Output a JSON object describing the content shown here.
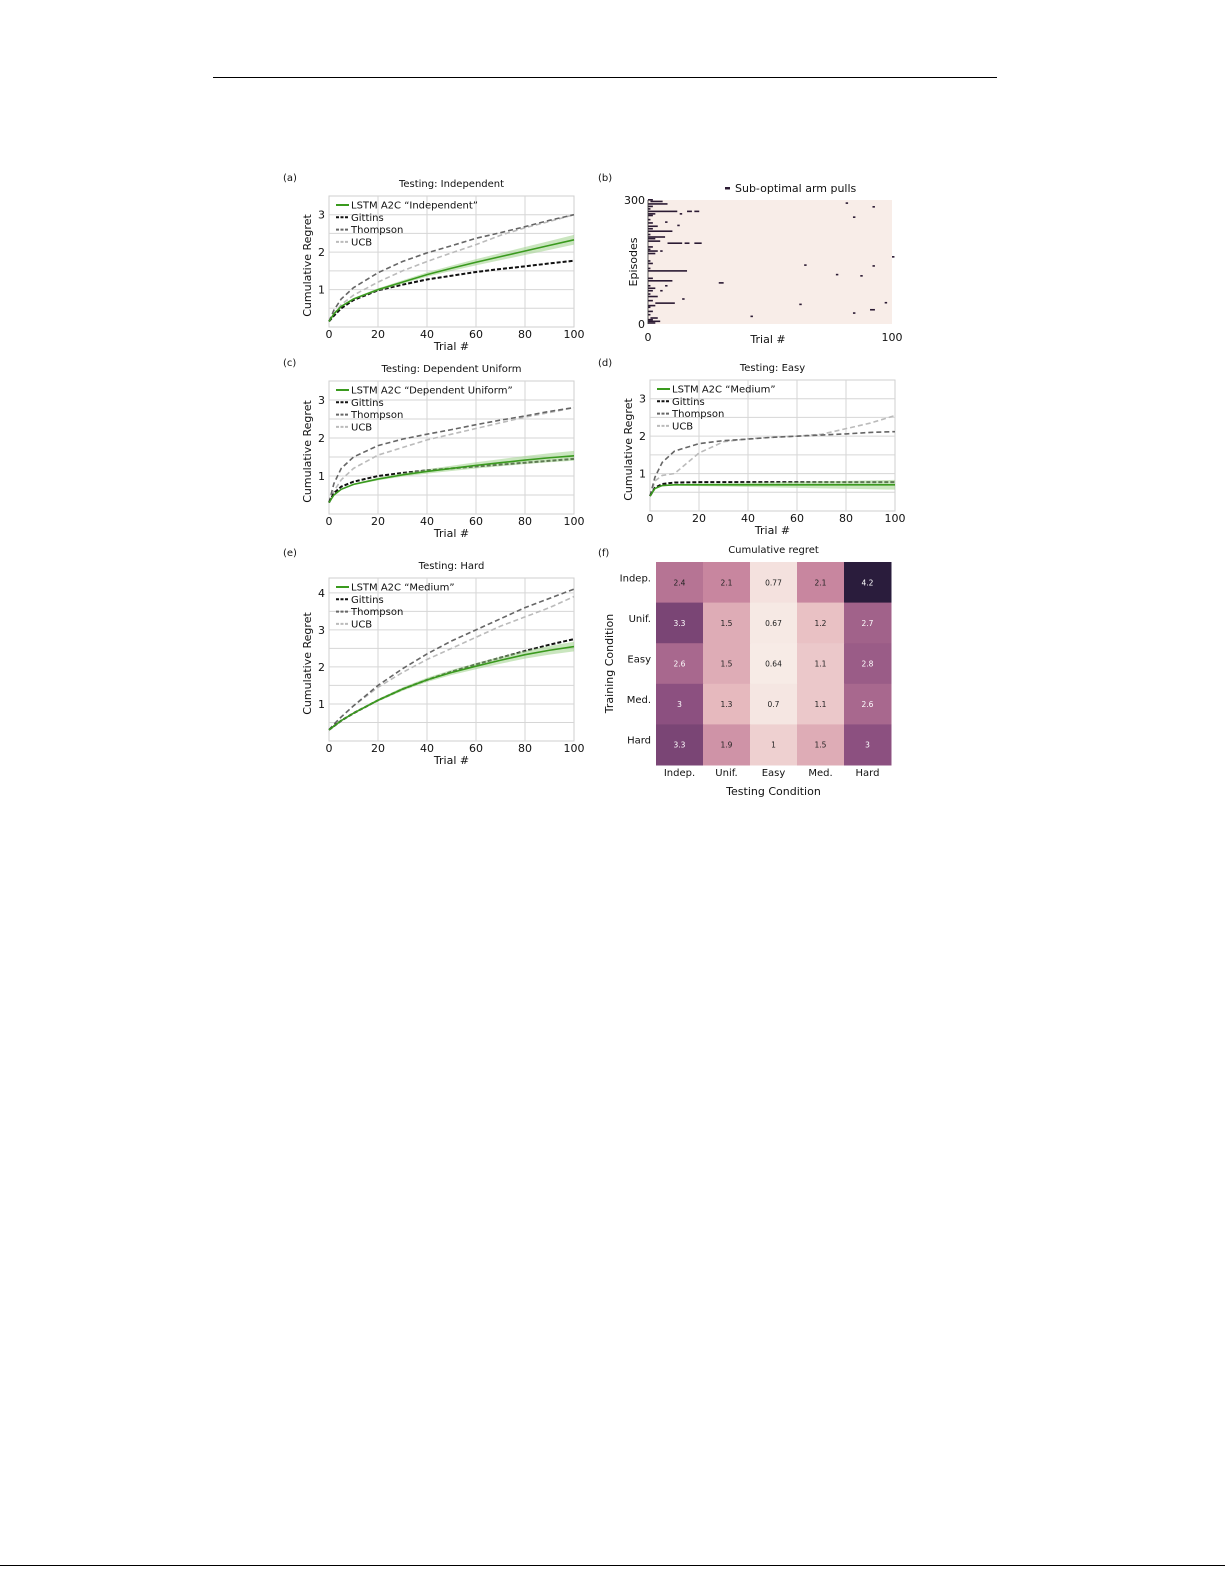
{
  "chart_data": [
    {
      "panel": "(a)",
      "type": "line",
      "title": "Testing: Independent",
      "xlabel": "Trial #",
      "ylabel": "Cumulative Regret",
      "xlim": [
        0,
        100
      ],
      "ylim": [
        0,
        3.5
      ],
      "grid": true,
      "legend": "top-left",
      "xticks": [
        "0",
        "20",
        "40",
        "60",
        "80",
        "100"
      ],
      "yticks": [
        "1",
        "2",
        "3"
      ],
      "x": [
        0,
        2,
        5,
        10,
        20,
        30,
        40,
        50,
        60,
        70,
        80,
        90,
        100
      ],
      "series": [
        {
          "name": "LSTM A2C “Independent”",
          "style": "solid",
          "color": "#3a9a1e",
          "values": [
            0.15,
            0.35,
            0.55,
            0.75,
            1.0,
            1.2,
            1.4,
            1.57,
            1.73,
            1.88,
            2.03,
            2.18,
            2.33
          ]
        },
        {
          "name": "Gittins",
          "style": "dashed",
          "color": "#111111",
          "values": [
            0.15,
            0.3,
            0.5,
            0.72,
            0.98,
            1.13,
            1.27,
            1.37,
            1.47,
            1.55,
            1.62,
            1.7,
            1.77
          ]
        },
        {
          "name": "Thompson",
          "style": "dashed",
          "color": "#666666",
          "values": [
            0.15,
            0.45,
            0.75,
            1.05,
            1.45,
            1.75,
            1.98,
            2.17,
            2.37,
            2.52,
            2.68,
            2.85,
            3.0
          ]
        },
        {
          "name": "UCB",
          "style": "dashed",
          "color": "#bbbbbb",
          "values": [
            0.15,
            0.35,
            0.6,
            0.85,
            1.2,
            1.5,
            1.75,
            1.98,
            2.2,
            2.45,
            2.65,
            2.82,
            3.0
          ]
        }
      ]
    },
    {
      "panel": "(b)",
      "type": "scatter",
      "title": "",
      "legend_label": "Sub-optimal arm pulls",
      "xlabel": "Trial #",
      "ylabel": "Episodes",
      "xlim": [
        0,
        100
      ],
      "ylim": [
        0,
        300
      ],
      "xticks": [
        "0",
        "100"
      ],
      "yticks": [
        "0",
        "300"
      ],
      "background": "#f8ede8",
      "mark_color": "#2b1a33",
      "segments": [
        [
          296,
          1,
          6
        ],
        [
          290,
          0,
          8
        ],
        [
          272,
          0,
          12
        ],
        [
          272,
          16,
          18
        ],
        [
          272,
          19,
          21
        ],
        [
          292,
          81,
          82
        ],
        [
          283,
          92,
          93
        ],
        [
          258,
          84,
          85
        ],
        [
          224,
          0,
          10
        ],
        [
          210,
          0,
          7
        ],
        [
          195,
          8,
          14
        ],
        [
          195,
          15,
          17
        ],
        [
          195,
          19,
          22
        ],
        [
          162,
          100,
          101
        ],
        [
          142,
          64,
          65
        ],
        [
          140,
          92,
          93
        ],
        [
          128,
          0,
          16
        ],
        [
          119,
          77,
          78
        ],
        [
          116,
          87,
          88
        ],
        [
          104,
          0,
          10
        ],
        [
          99,
          29,
          31
        ],
        [
          60,
          14,
          15
        ],
        [
          50,
          3,
          11
        ],
        [
          47,
          62,
          63
        ],
        [
          51,
          97,
          98
        ],
        [
          34,
          91,
          93
        ],
        [
          26,
          84,
          85
        ],
        [
          18,
          42,
          43
        ],
        [
          6,
          0,
          5
        ],
        [
          2,
          0,
          3
        ],
        [
          10,
          0,
          2
        ],
        [
          14,
          1,
          4
        ],
        [
          22,
          0,
          1
        ],
        [
          30,
          0,
          2
        ],
        [
          40,
          0,
          1
        ],
        [
          44,
          0,
          3
        ],
        [
          56,
          0,
          2
        ],
        [
          66,
          0,
          4
        ],
        [
          72,
          0,
          1
        ],
        [
          80,
          0,
          2
        ],
        [
          86,
          0,
          3
        ],
        [
          92,
          0,
          1
        ],
        [
          110,
          0,
          2
        ],
        [
          134,
          0,
          1
        ],
        [
          146,
          0,
          2
        ],
        [
          152,
          0,
          1
        ],
        [
          170,
          0,
          3
        ],
        [
          176,
          0,
          4
        ],
        [
          180,
          0,
          1
        ],
        [
          186,
          0,
          2
        ],
        [
          200,
          0,
          5
        ],
        [
          206,
          0,
          3
        ],
        [
          216,
          0,
          1
        ],
        [
          230,
          0,
          2
        ],
        [
          236,
          0,
          4
        ],
        [
          244,
          0,
          2
        ],
        [
          252,
          0,
          1
        ],
        [
          262,
          0,
          2
        ],
        [
          266,
          0,
          3
        ],
        [
          278,
          0,
          1
        ],
        [
          284,
          0,
          2
        ],
        [
          300,
          0,
          2
        ],
        [
          246,
          7,
          8
        ],
        [
          238,
          12,
          13
        ],
        [
          266,
          13,
          14
        ],
        [
          176,
          5,
          6
        ],
        [
          92,
          7,
          8
        ],
        [
          80,
          5,
          6
        ]
      ]
    },
    {
      "panel": "(c)",
      "type": "line",
      "title": "Testing: Dependent Uniform",
      "xlabel": "Trial #",
      "ylabel": "Cumulative Regret",
      "xlim": [
        0,
        100
      ],
      "ylim": [
        0,
        3.5
      ],
      "grid": true,
      "legend": "top-left",
      "xticks": [
        "0",
        "20",
        "40",
        "60",
        "80",
        "100"
      ],
      "yticks": [
        "1",
        "2",
        "3"
      ],
      "x": [
        0,
        2,
        5,
        10,
        20,
        30,
        40,
        50,
        60,
        70,
        80,
        90,
        100
      ],
      "series": [
        {
          "name": "LSTM A2C “Dependent Uniform”",
          "style": "solid",
          "color": "#3a9a1e",
          "values": [
            0.3,
            0.5,
            0.65,
            0.78,
            0.92,
            1.03,
            1.12,
            1.2,
            1.28,
            1.35,
            1.42,
            1.48,
            1.53
          ]
        },
        {
          "name": "Gittins",
          "style": "dashed",
          "color": "#111111",
          "values": [
            0.3,
            0.55,
            0.72,
            0.85,
            1.0,
            1.08,
            1.15,
            1.2,
            1.25,
            1.3,
            1.35,
            1.4,
            1.45
          ]
        },
        {
          "name": "Thompson",
          "style": "dashed",
          "color": "#666666",
          "values": [
            0.3,
            0.8,
            1.2,
            1.5,
            1.8,
            1.97,
            2.1,
            2.22,
            2.35,
            2.47,
            2.58,
            2.7,
            2.8
          ]
        },
        {
          "name": "UCB",
          "style": "dashed",
          "color": "#bbbbbb",
          "values": [
            0.3,
            0.6,
            0.9,
            1.2,
            1.55,
            1.75,
            1.95,
            2.1,
            2.25,
            2.4,
            2.55,
            2.67,
            2.8
          ]
        }
      ]
    },
    {
      "panel": "(d)",
      "type": "line",
      "title": "Testing: Easy",
      "xlabel": "Trial #",
      "ylabel": "Cumulative Regret",
      "xlim": [
        0,
        100
      ],
      "ylim": [
        0,
        3.5
      ],
      "grid": true,
      "legend": "top-left",
      "xticks": [
        "0",
        "20",
        "40",
        "60",
        "80",
        "100"
      ],
      "yticks": [
        "1",
        "2",
        "3"
      ],
      "x": [
        0,
        2,
        5,
        10,
        20,
        30,
        40,
        50,
        60,
        70,
        80,
        90,
        100
      ],
      "series": [
        {
          "name": "LSTM A2C “Medium”",
          "style": "solid",
          "color": "#3a9a1e",
          "values": [
            0.4,
            0.6,
            0.68,
            0.7,
            0.7,
            0.7,
            0.7,
            0.7,
            0.7,
            0.7,
            0.7,
            0.7,
            0.7
          ]
        },
        {
          "name": "Gittins",
          "style": "dashed",
          "color": "#111111",
          "values": [
            0.4,
            0.62,
            0.72,
            0.76,
            0.77,
            0.77,
            0.77,
            0.77,
            0.77,
            0.77,
            0.77,
            0.77,
            0.77
          ]
        },
        {
          "name": "Thompson",
          "style": "dashed",
          "color": "#666666",
          "values": [
            0.4,
            0.9,
            1.3,
            1.6,
            1.8,
            1.88,
            1.92,
            1.97,
            2.0,
            2.03,
            2.06,
            2.1,
            2.12
          ]
        },
        {
          "name": "UCB",
          "style": "dashed",
          "color": "#bbbbbb",
          "values": [
            0.4,
            0.8,
            0.95,
            1.0,
            1.55,
            1.85,
            1.93,
            1.97,
            2.0,
            2.05,
            2.2,
            2.35,
            2.55
          ]
        }
      ]
    },
    {
      "panel": "(e)",
      "type": "line",
      "title": "Testing: Hard",
      "xlabel": "Trial #",
      "ylabel": "Cumulative Regret",
      "xlim": [
        0,
        100
      ],
      "ylim": [
        0,
        4.4
      ],
      "grid": true,
      "legend": "top-left",
      "xticks": [
        "0",
        "20",
        "40",
        "60",
        "80",
        "100"
      ],
      "yticks": [
        "1",
        "2",
        "3",
        "4"
      ],
      "x": [
        0,
        2,
        5,
        10,
        20,
        30,
        40,
        50,
        60,
        70,
        80,
        90,
        100
      ],
      "series": [
        {
          "name": "LSTM A2C “Medium”",
          "style": "solid",
          "color": "#3a9a1e",
          "values": [
            0.3,
            0.4,
            0.55,
            0.75,
            1.1,
            1.4,
            1.65,
            1.85,
            2.02,
            2.18,
            2.33,
            2.45,
            2.55
          ]
        },
        {
          "name": "Gittins",
          "style": "dashed",
          "color": "#111111",
          "values": [
            0.3,
            0.4,
            0.55,
            0.75,
            1.1,
            1.4,
            1.65,
            1.87,
            2.07,
            2.25,
            2.43,
            2.6,
            2.75
          ]
        },
        {
          "name": "Thompson",
          "style": "dashed",
          "color": "#666666",
          "values": [
            0.3,
            0.45,
            0.65,
            0.95,
            1.5,
            1.95,
            2.35,
            2.7,
            3.0,
            3.3,
            3.6,
            3.85,
            4.1
          ]
        },
        {
          "name": "UCB",
          "style": "dashed",
          "color": "#bbbbbb",
          "values": [
            0.3,
            0.45,
            0.65,
            0.95,
            1.45,
            1.85,
            2.2,
            2.5,
            2.8,
            3.1,
            3.35,
            3.6,
            3.9
          ]
        }
      ]
    },
    {
      "panel": "(f)",
      "type": "heatmap",
      "title": "Cumulative regret",
      "xlabel": "Testing Condition",
      "ylabel": "Training Condition",
      "columns": [
        "Indep.",
        "Unif.",
        "Easy",
        "Med.",
        "Hard"
      ],
      "rows": [
        "Indep.",
        "Unif.",
        "Easy",
        "Med.",
        "Hard"
      ],
      "values": [
        [
          "2.4",
          "2.1",
          "0.77",
          "2.1",
          "4.2"
        ],
        [
          "3.3",
          "1.5",
          "0.67",
          "1.2",
          "2.7"
        ],
        [
          "2.6",
          "1.5",
          "0.64",
          "1.1",
          "2.8"
        ],
        [
          "3",
          "1.3",
          "0.7",
          "1.1",
          "2.6"
        ],
        [
          "3.3",
          "1.9",
          "1",
          "1.5",
          "3"
        ]
      ]
    }
  ]
}
